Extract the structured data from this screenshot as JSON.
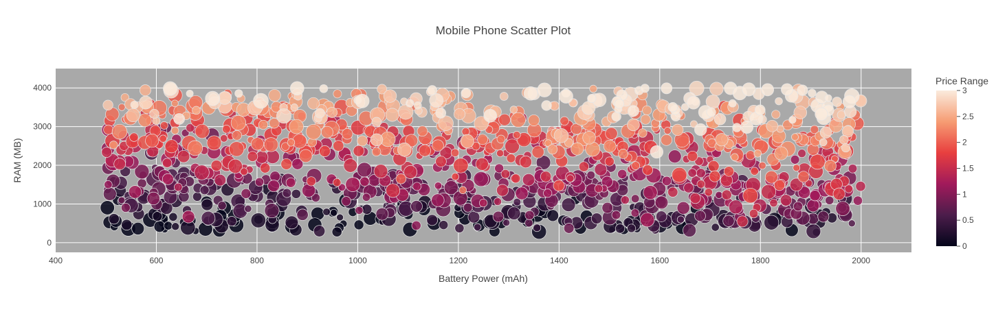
{
  "chart_data": {
    "type": "scatter",
    "title": "Mobile Phone Scatter Plot",
    "xlabel": "Battery Power (mAh)",
    "ylabel": "RAM (MB)",
    "xlim": [
      400,
      2100
    ],
    "ylim": [
      -250,
      4500
    ],
    "x_ticks": [
      400,
      600,
      800,
      1000,
      1200,
      1400,
      1600,
      1800,
      2000
    ],
    "y_ticks": [
      0,
      1000,
      2000,
      3000,
      4000
    ],
    "grid": true,
    "colorbar": {
      "title": "Price Range",
      "range": [
        0,
        3
      ],
      "ticks": [
        "0",
        "0.5",
        "1",
        "1.5",
        "2",
        "2.5",
        "3"
      ],
      "colorscale": [
        "#03051a",
        "#4c1d4b",
        "#a11a5b",
        "#e83f3f",
        "#f69c73",
        "#faebdd"
      ]
    },
    "point_count_estimate": 1400,
    "series_by_price_range": [
      {
        "price_range": 0,
        "battery_range": [
          500,
          2000
        ],
        "ram_range": [
          250,
          1800
        ],
        "ram_center": 700
      },
      {
        "price_range": 1,
        "battery_range": [
          500,
          2000
        ],
        "ram_range": [
          400,
          2700
        ],
        "ram_center": 1600
      },
      {
        "price_range": 2,
        "battery_range": [
          500,
          2000
        ],
        "ram_range": [
          1300,
          3700
        ],
        "ram_center": 2400
      },
      {
        "price_range": 3,
        "battery_range": [
          500,
          2000
        ],
        "ram_range": [
          2300,
          4000
        ],
        "ram_center": 3450
      }
    ],
    "sample_points": [
      {
        "x": 505,
        "y": 300,
        "price_range": 0
      },
      {
        "x": 600,
        "y": 1700,
        "price_range": 1
      },
      {
        "x": 620,
        "y": 3600,
        "price_range": 2
      },
      {
        "x": 510,
        "y": 3900,
        "price_range": 3
      },
      {
        "x": 1050,
        "y": 550,
        "price_range": 0
      },
      {
        "x": 1200,
        "y": 1500,
        "price_range": 1
      },
      {
        "x": 1500,
        "y": 2600,
        "price_range": 2
      },
      {
        "x": 1900,
        "y": 3800,
        "price_range": 3
      },
      {
        "x": 1980,
        "y": 600,
        "price_range": 1
      },
      {
        "x": 1995,
        "y": 2300,
        "price_range": 2
      }
    ]
  }
}
